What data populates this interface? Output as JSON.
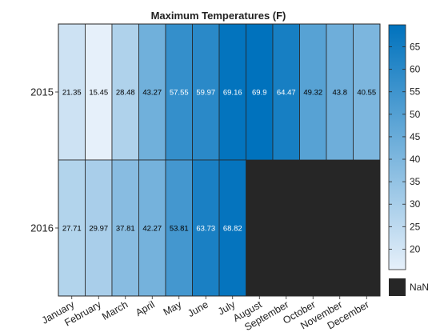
{
  "chart_data": {
    "type": "heatmap",
    "title": "Maximum Temperatures (F)",
    "x_categories": [
      "January",
      "February",
      "March",
      "April",
      "May",
      "June",
      "July",
      "August",
      "September",
      "October",
      "November",
      "December"
    ],
    "y_categories": [
      "2015",
      "2016"
    ],
    "values": [
      [
        21.35,
        15.45,
        28.48,
        43.27,
        57.55,
        59.97,
        69.16,
        69.9,
        64.47,
        49.32,
        43.8,
        40.55
      ],
      [
        27.71,
        29.97,
        37.81,
        42.27,
        53.81,
        63.73,
        68.82,
        null,
        null,
        null,
        null,
        null
      ]
    ],
    "value_labels": [
      [
        "21.35",
        "15.45",
        "28.48",
        "43.27",
        "57.55",
        "59.97",
        "69.16",
        "69.9",
        "64.47",
        "49.32",
        "43.8",
        "40.55"
      ],
      [
        "27.71",
        "29.97",
        "37.81",
        "42.27",
        "53.81",
        "63.73",
        "68.82",
        "",
        "",
        "",
        "",
        ""
      ]
    ],
    "colorbar": {
      "min": 15.45,
      "max": 69.9,
      "ticks": [
        20,
        25,
        30,
        35,
        40,
        45,
        50,
        55,
        60,
        65
      ],
      "tick_labels": [
        "20",
        "25",
        "30",
        "35",
        "40",
        "45",
        "50",
        "55",
        "60",
        "65"
      ],
      "colormap": [
        "#e6f0fa",
        "#0072bd"
      ]
    },
    "missing": {
      "label": "NaN",
      "color": "#262626"
    }
  }
}
